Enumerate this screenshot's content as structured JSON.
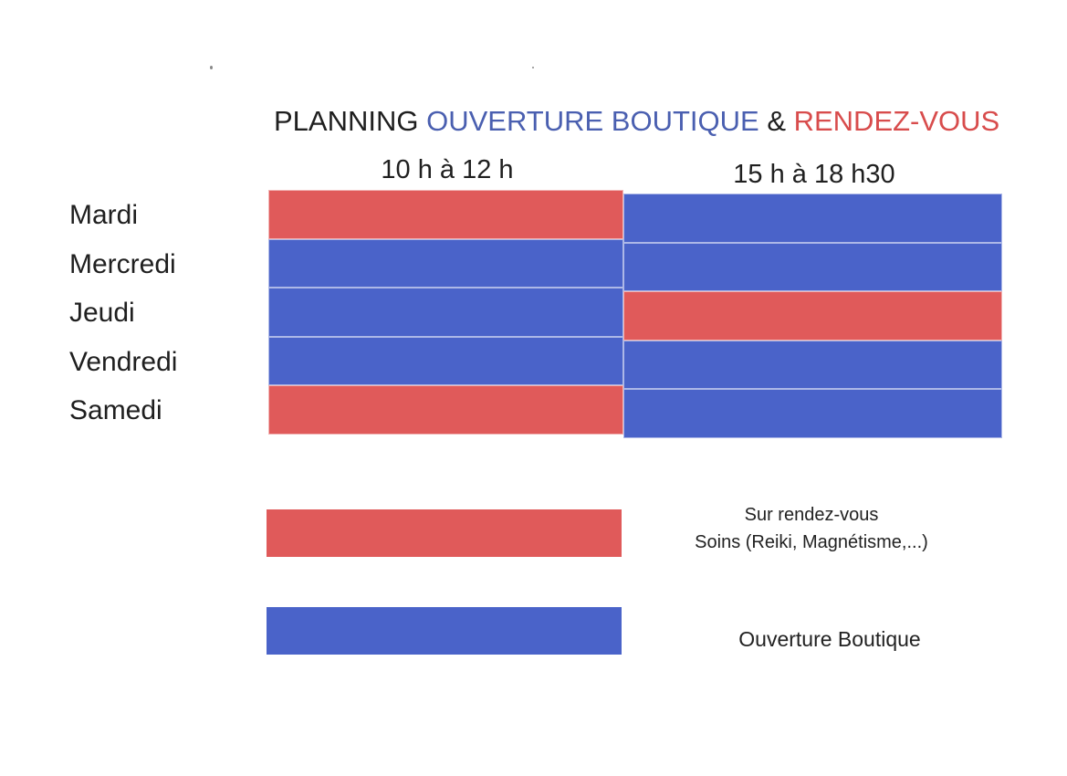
{
  "title": {
    "part1": "PLANNING ",
    "part2": "OUVERTURE BOUTIQUE",
    "part3": " & ",
    "part4": "RENDEZ-VOUS"
  },
  "columns": [
    "10 h à 12 h",
    "15 h à 18 h30"
  ],
  "days": [
    "Mardi",
    "Mercredi",
    "Jeudi",
    "Vendredi",
    "Samedi"
  ],
  "schedule": [
    [
      "rdv",
      "boutique"
    ],
    [
      "boutique",
      "boutique"
    ],
    [
      "boutique",
      "rdv"
    ],
    [
      "boutique",
      "boutique"
    ],
    [
      "rdv",
      "boutique"
    ]
  ],
  "colors": {
    "rdv": "#e05a5a",
    "boutique": "#4a63c9",
    "title_blue": "#4a5fb0",
    "title_red": "#d84c4c"
  },
  "legend": {
    "rdv_line1": "Sur rendez-vous",
    "rdv_line2": "Soins (Reiki, Magnétisme,...)",
    "boutique": "Ouverture Boutique"
  }
}
